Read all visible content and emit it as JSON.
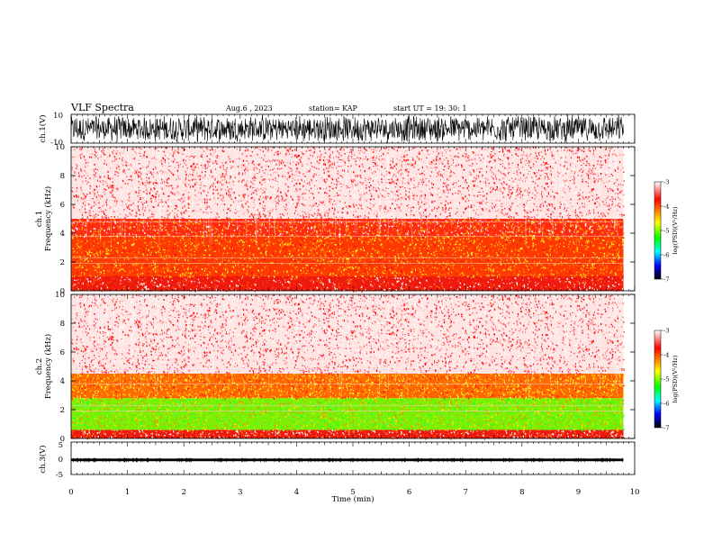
{
  "header": {
    "title": "VLF Spectra",
    "date": "Aug.6 , 2023",
    "station": "station= KAP",
    "start": "start UT = 19: 30: 1"
  },
  "colors": {
    "background": "#ffffff",
    "trace": "#000000",
    "colormap": [
      "#ffffff",
      "#ff0000",
      "#ffff00",
      "#00ff00",
      "#00ffff",
      "#0000ff",
      "#000000"
    ]
  },
  "chart_data": [
    {
      "type": "line",
      "name": "channel-1-waveform",
      "ylabel": "ch.1(V)",
      "ylim": [
        -10,
        10
      ],
      "yticks": [
        "10",
        "-10"
      ],
      "xlim": [
        0,
        10
      ],
      "description_of_signal": "dense noisy waveform spanning most of the range until about 9.8 min"
    },
    {
      "type": "heatmap",
      "name": "channel-1-spectrogram",
      "ylabel": "ch.1\nFrequency (kHz)",
      "ylim": [
        0,
        10
      ],
      "yticks": [
        "0",
        "2",
        "4",
        "6",
        "8",
        "10"
      ],
      "xlim": [
        0,
        10
      ],
      "data_end_min": 9.8,
      "bands": [
        {
          "from_khz": 0.0,
          "to_khz": 1.0,
          "level": "red"
        },
        {
          "from_khz": 1.0,
          "to_khz": 3.8,
          "level": "red-yellow"
        },
        {
          "from_khz": 3.8,
          "to_khz": 5.0,
          "level": "red"
        },
        {
          "from_khz": 5.0,
          "to_khz": 10.0,
          "level": "white-red speckle"
        }
      ],
      "colorbar": {
        "label": "log(PSD)(V²/Hz)",
        "range": [
          -7,
          -3
        ],
        "ticks": [
          "-3",
          "-4",
          "-5",
          "-6",
          "-7"
        ]
      }
    },
    {
      "type": "heatmap",
      "name": "channel-2-spectrogram",
      "ylabel": "ch.2\nFrequency (kHz)",
      "ylim": [
        0,
        10
      ],
      "yticks": [
        "0",
        "2",
        "4",
        "6",
        "8",
        "10"
      ],
      "xlim": [
        0,
        10
      ],
      "data_end_min": 9.8,
      "bands": [
        {
          "from_khz": 0.0,
          "to_khz": 0.6,
          "level": "red"
        },
        {
          "from_khz": 0.6,
          "to_khz": 2.8,
          "level": "green-yellow"
        },
        {
          "from_khz": 2.8,
          "to_khz": 4.5,
          "level": "yellow-red"
        },
        {
          "from_khz": 4.5,
          "to_khz": 10.0,
          "level": "white-red speckle"
        }
      ],
      "colorbar": {
        "label": "log(PSD)(V²/Hz)",
        "range": [
          -7,
          -3
        ],
        "ticks": [
          "-3",
          "-4",
          "-5",
          "-6",
          "-7"
        ]
      }
    },
    {
      "type": "line",
      "name": "channel-3-waveform",
      "ylabel": "ch.3(V)",
      "ylim": [
        -5,
        5
      ],
      "yticks": [
        "5",
        "0",
        "-5"
      ],
      "xlim": [
        0,
        10
      ],
      "description_of_signal": "narrow band around -0.5 V until about 9.8 min"
    }
  ],
  "xaxis": {
    "label": "Time (min)",
    "ticks": [
      "0",
      "1",
      "2",
      "3",
      "4",
      "5",
      "6",
      "7",
      "8",
      "9",
      "10"
    ]
  }
}
